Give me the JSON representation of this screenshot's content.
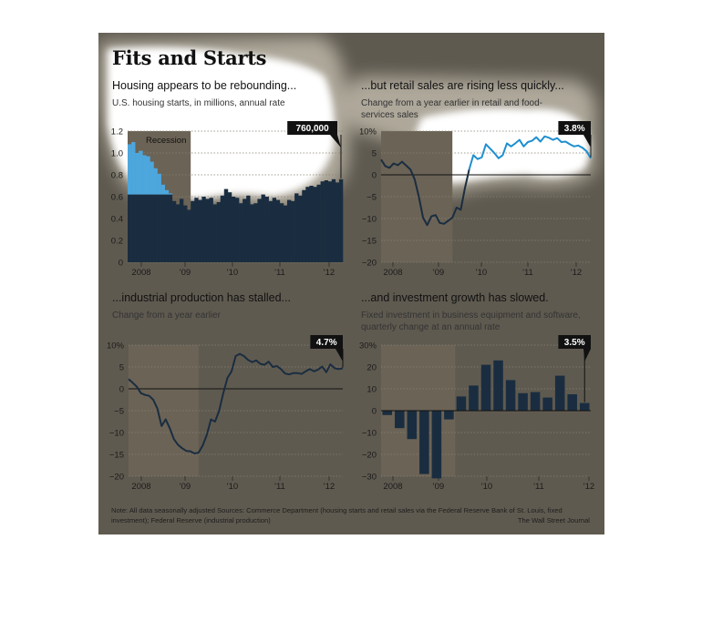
{
  "title": "Fits and Starts",
  "note": "Note: All data seasonally adjusted    Sources: Commerce Department (housing starts and retail sales via the Federal Reserve Bank of St. Louis, fixed investment); Federal Reserve (industrial production)",
  "source": "The Wall Street Journal",
  "colors": {
    "background": "#5f5a50",
    "dark_series": "#1a2d40",
    "highlight_series": "#4da6dc",
    "recession_band": "#6b6356"
  },
  "chart_data": [
    {
      "type": "bar",
      "title": "Housing appears to be rebounding...",
      "subtitle": "U.S. housing starts, in millions, annual rate",
      "ylim": [
        0,
        1.2
      ],
      "yticks": [
        "1.2",
        "1.0",
        "0.8",
        "0.6",
        "0.4",
        "0.2",
        "0"
      ],
      "xticks": [
        "2008",
        "'09",
        "'10",
        "'11",
        "'12"
      ],
      "annotation": "760,000",
      "recession_label": "Recession",
      "recession": [
        0,
        17
      ],
      "values": [
        1.08,
        1.1,
        1.0,
        1.02,
        0.98,
        0.97,
        0.92,
        0.86,
        0.81,
        0.71,
        0.66,
        0.63,
        0.56,
        0.53,
        0.58,
        0.52,
        0.48,
        0.56,
        0.59,
        0.57,
        0.6,
        0.58,
        0.59,
        0.53,
        0.55,
        0.61,
        0.67,
        0.64,
        0.6,
        0.59,
        0.54,
        0.58,
        0.61,
        0.53,
        0.54,
        0.58,
        0.62,
        0.6,
        0.56,
        0.59,
        0.57,
        0.54,
        0.52,
        0.57,
        0.56,
        0.63,
        0.61,
        0.66,
        0.69,
        0.7,
        0.69,
        0.71,
        0.74,
        0.75,
        0.74,
        0.76,
        0.73,
        0.76
      ]
    },
    {
      "type": "line",
      "title": "...but retail sales are rising less quickly...",
      "subtitle": "Change from a year earlier in retail and food-services sales",
      "ylim": [
        -20,
        10
      ],
      "yticks": [
        "10%",
        "5",
        "0",
        "−5",
        "−10",
        "−15",
        "−20"
      ],
      "xticks": [
        "2008",
        "'09",
        "'10",
        "'11",
        "'12"
      ],
      "annotation": "3.8%",
      "recession": [
        0,
        17
      ],
      "values": [
        3.5,
        2.0,
        1.6,
        2.6,
        2.2,
        3.0,
        2.1,
        1.2,
        -1.0,
        -5.0,
        -9.8,
        -11.5,
        -9.5,
        -9.2,
        -11.0,
        -11.2,
        -10.5,
        -9.8,
        -7.5,
        -8.0,
        -3.0,
        1.2,
        4.5,
        3.6,
        4.0,
        7.0,
        6.0,
        5.0,
        3.8,
        4.5,
        7.2,
        6.5,
        7.2,
        8.0,
        6.5,
        7.5,
        7.8,
        8.6,
        7.6,
        8.8,
        8.5,
        8.0,
        8.4,
        7.5,
        7.6,
        7.0,
        6.5,
        6.7,
        6.2,
        5.4,
        3.8
      ]
    },
    {
      "type": "line",
      "title": "...industrial production has stalled...",
      "subtitle": "Change from a year earlier",
      "ylim": [
        -20,
        10
      ],
      "yticks": [
        "10%",
        "5",
        "0",
        "−5",
        "−10",
        "−15",
        "−20"
      ],
      "xticks": [
        "2008",
        "'09",
        "'10",
        "'11",
        "'12"
      ],
      "annotation": "4.7%",
      "recession": [
        0,
        17
      ],
      "values": [
        2.2,
        1.4,
        0.5,
        -1.0,
        -1.4,
        -1.6,
        -2.5,
        -4.5,
        -8.5,
        -7.0,
        -9.0,
        -11.5,
        -12.8,
        -13.6,
        -14.2,
        -14.3,
        -14.8,
        -14.6,
        -13.0,
        -10.5,
        -7.0,
        -7.5,
        -5.0,
        -1.0,
        2.5,
        4.0,
        7.5,
        8.0,
        7.5,
        6.6,
        6.1,
        6.5,
        5.7,
        5.5,
        6.2,
        5.0,
        5.2,
        4.5,
        3.5,
        3.3,
        3.6,
        3.6,
        3.4,
        4.0,
        4.5,
        4.0,
        4.4,
        5.1,
        3.8,
        5.6,
        4.7,
        4.5,
        4.7
      ]
    },
    {
      "type": "bar",
      "title": "...and investment growth has slowed.",
      "subtitle": "Fixed investment in business equipment and software, quarterly change at an annual rate",
      "ylim": [
        -30,
        30
      ],
      "yticks": [
        "30%",
        "20",
        "10",
        "0",
        "−10",
        "−20",
        "−30"
      ],
      "xticks": [
        "2008",
        "'09",
        "'10",
        "'11",
        "'12"
      ],
      "annotation": "3.5%",
      "recession": [
        0,
        6
      ],
      "values": [
        -2,
        -8,
        -13,
        -29,
        -31,
        -4,
        6.5,
        11.5,
        21,
        23,
        14,
        8,
        8.5,
        6,
        16,
        7.5,
        3.5
      ]
    }
  ]
}
